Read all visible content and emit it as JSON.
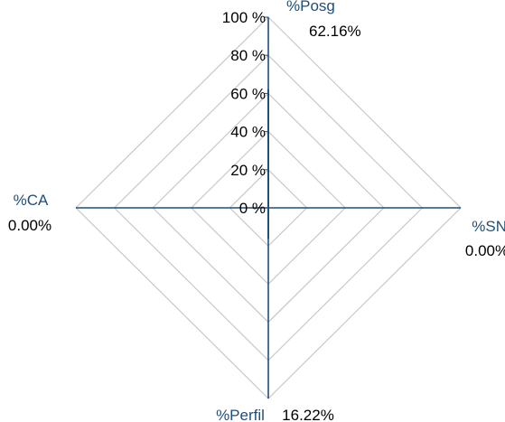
{
  "chart_data": {
    "type": "radar",
    "axes": [
      {
        "name": "%Posg",
        "value": 62.16,
        "value_label": "62.16%"
      },
      {
        "name": "%SNI",
        "value": 0.0,
        "value_label": "0.00%"
      },
      {
        "name": "%Perfil",
        "value": 16.22,
        "value_label": "16.22%"
      },
      {
        "name": "%CA",
        "value": 0.0,
        "value_label": "0.00%"
      }
    ],
    "ticks": [
      0,
      20,
      40,
      60,
      80,
      100
    ],
    "tick_labels": [
      "0 %",
      "20 %",
      "40 %",
      "60 %",
      "80 %",
      "100 %"
    ],
    "range": [
      0,
      100
    ],
    "grid": true,
    "colors": {
      "axis": "#1f4e79",
      "axis_label": "#1f4e79",
      "grid": "#c8c8c8",
      "series": "#1f4e79"
    }
  }
}
